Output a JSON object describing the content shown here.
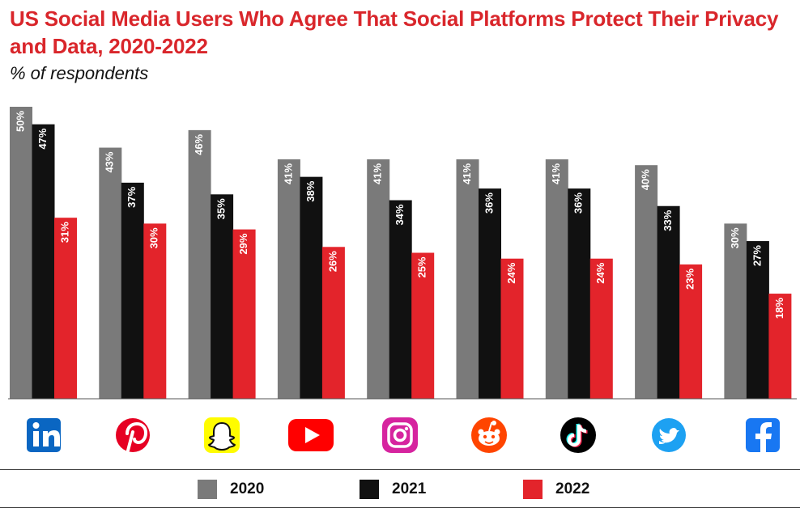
{
  "chart_data": {
    "type": "bar",
    "title": "US Social Media Users Who Agree That Social Platforms Protect Their Privacy and Data, 2020-2022",
    "subtitle": "% of respondents",
    "categories": [
      "LinkedIn",
      "Pinterest",
      "Snapchat",
      "YouTube",
      "Instagram",
      "Reddit",
      "TikTok",
      "Twitter",
      "Facebook"
    ],
    "series": [
      {
        "name": "2020",
        "color": "#7a7a7a",
        "values": [
          50,
          43,
          46,
          41,
          41,
          41,
          41,
          40,
          30
        ]
      },
      {
        "name": "2021",
        "color": "#111111",
        "values": [
          47,
          37,
          35,
          38,
          34,
          36,
          36,
          33,
          27
        ]
      },
      {
        "name": "2022",
        "color": "#e3242b",
        "values": [
          31,
          30,
          29,
          26,
          25,
          24,
          24,
          23,
          18
        ]
      }
    ],
    "value_suffix": "%",
    "ylim": [
      0,
      50
    ],
    "xlabel": "",
    "ylabel": "",
    "grid": false,
    "legend": "bottom"
  },
  "icons": [
    {
      "name": "linkedin-icon",
      "color": "#0a66c2"
    },
    {
      "name": "pinterest-icon",
      "color": "#e60023"
    },
    {
      "name": "snapchat-icon",
      "color": "#fffc00"
    },
    {
      "name": "youtube-icon",
      "color": "#ff0000"
    },
    {
      "name": "instagram-icon",
      "color": "#d6249f"
    },
    {
      "name": "reddit-icon",
      "color": "#ff4500"
    },
    {
      "name": "tiktok-icon",
      "color": "#000000"
    },
    {
      "name": "twitter-icon",
      "color": "#1da1f2"
    },
    {
      "name": "facebook-icon",
      "color": "#1877f2"
    }
  ]
}
